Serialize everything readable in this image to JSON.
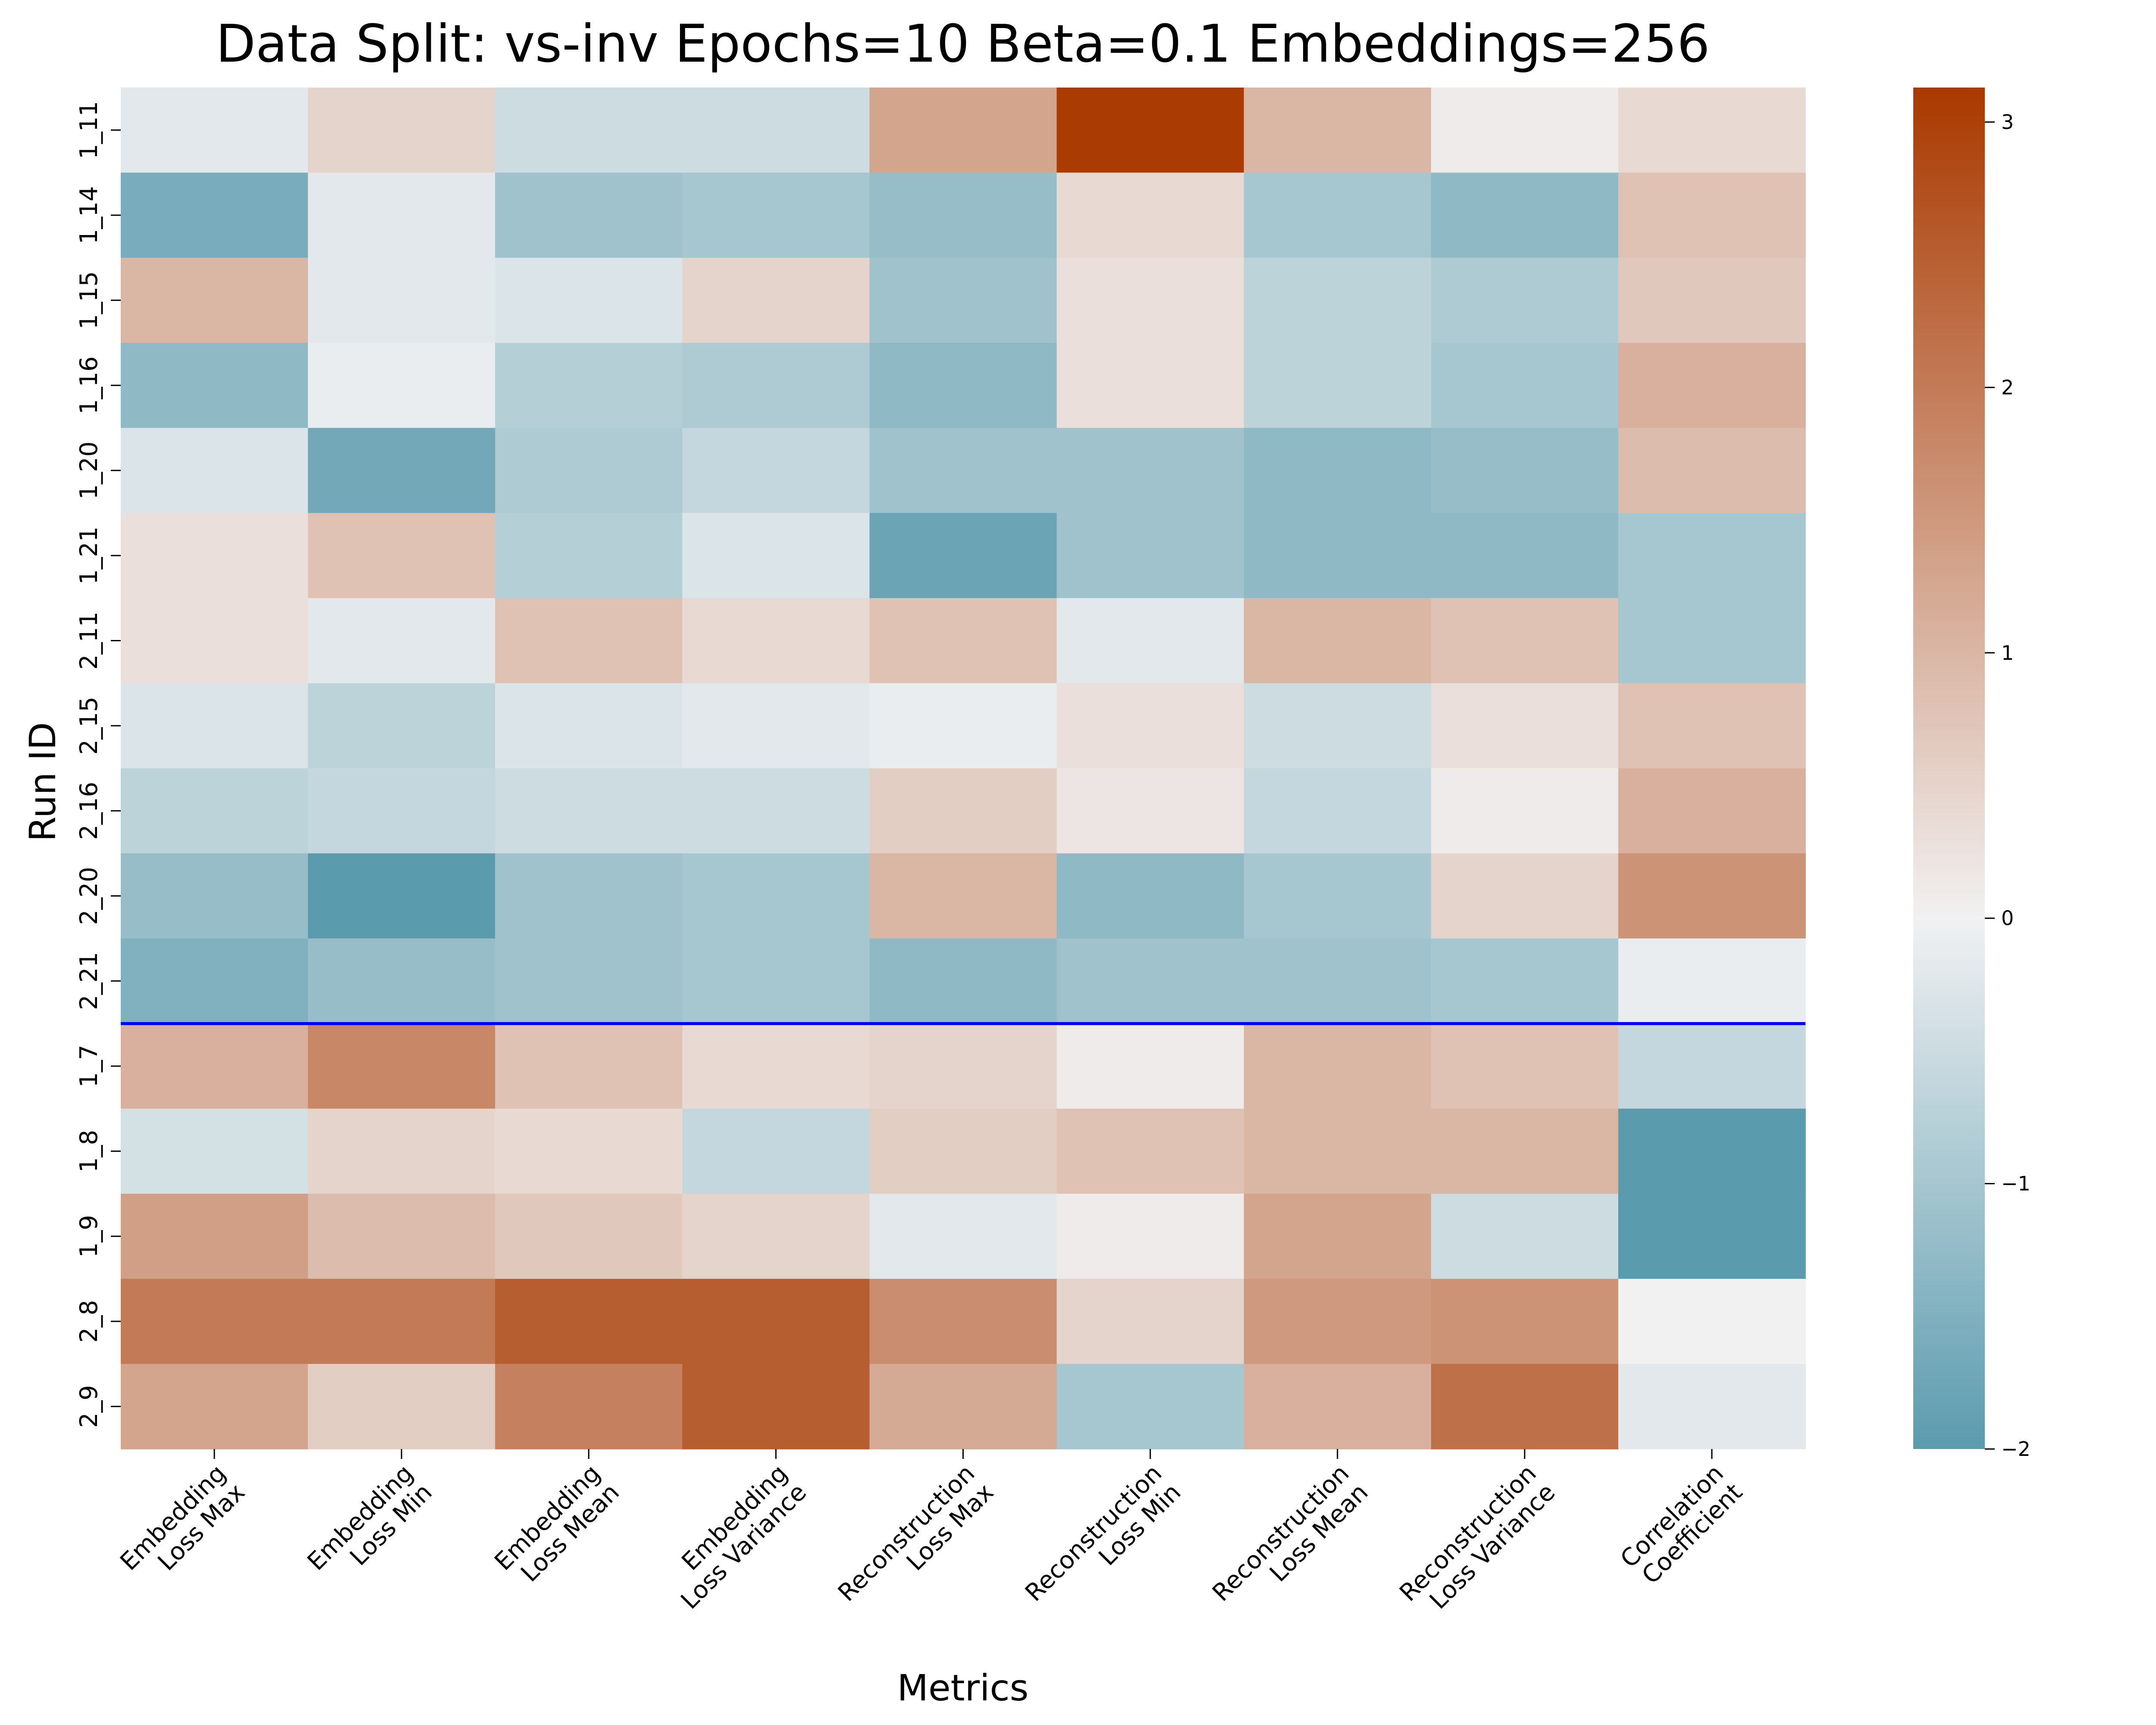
{
  "chart_data": {
    "type": "heatmap",
    "title": "Data Split: vs-inv Epochs=10 Beta=0.1 Embeddings=256",
    "xlabel": "Metrics",
    "ylabel": "Run ID",
    "x_categories": [
      [
        "Embedding",
        "Loss Max"
      ],
      [
        "Embedding",
        "Loss Min"
      ],
      [
        "Embedding",
        "Loss Mean"
      ],
      [
        "Embedding",
        "Loss Variance"
      ],
      [
        "Reconstruction",
        "Loss Max"
      ],
      [
        "Reconstruction",
        "Loss Min"
      ],
      [
        "Reconstruction",
        "Loss Mean"
      ],
      [
        "Reconstruction",
        "Loss Variance"
      ],
      [
        "Correlation",
        "Coefficient"
      ]
    ],
    "y_categories": [
      "1_11",
      "1_14",
      "1_15",
      "1_16",
      "1_20",
      "1_21",
      "2_11",
      "2_15",
      "2_16",
      "2_20",
      "2_21",
      "1_7",
      "1_8",
      "1_9",
      "2_8",
      "2_9"
    ],
    "values": [
      [
        -0.2,
        0.5,
        -0.5,
        -0.5,
        1.3,
        3.1,
        1.0,
        0.1,
        0.4
      ],
      [
        -1.6,
        -0.2,
        -1.1,
        -1.0,
        -1.2,
        0.4,
        -1.0,
        -1.3,
        0.8
      ],
      [
        1.0,
        -0.2,
        -0.3,
        0.5,
        -1.1,
        0.3,
        -0.7,
        -0.9,
        0.7
      ],
      [
        -1.3,
        -0.1,
        -0.8,
        -0.9,
        -1.3,
        0.3,
        -0.7,
        -1.0,
        1.1
      ],
      [
        -0.3,
        -1.7,
        -0.9,
        -0.6,
        -1.1,
        -1.1,
        -1.3,
        -1.2,
        0.9
      ],
      [
        0.3,
        0.8,
        -0.8,
        -0.3,
        -1.8,
        -1.1,
        -1.3,
        -1.3,
        -1.0
      ],
      [
        0.3,
        -0.2,
        0.8,
        0.4,
        0.8,
        -0.2,
        1.0,
        0.8,
        -1.0
      ],
      [
        -0.3,
        -0.7,
        -0.3,
        -0.2,
        -0.1,
        0.3,
        -0.5,
        0.3,
        0.8
      ],
      [
        -0.7,
        -0.6,
        -0.5,
        -0.5,
        0.6,
        0.2,
        -0.6,
        0.1,
        1.1
      ],
      [
        -1.2,
        -2.0,
        -1.1,
        -1.0,
        1.0,
        -1.3,
        -1.0,
        0.5,
        1.6
      ],
      [
        -1.5,
        -1.2,
        -1.1,
        -1.0,
        -1.3,
        -1.1,
        -1.1,
        -1.0,
        -0.1
      ],
      [
        1.1,
        1.8,
        0.8,
        0.4,
        0.5,
        0.1,
        1.0,
        0.8,
        -0.6
      ],
      [
        -0.4,
        0.5,
        0.4,
        -0.6,
        0.6,
        0.8,
        1.0,
        1.0,
        -2.0
      ],
      [
        1.4,
        0.9,
        0.7,
        0.5,
        -0.2,
        0.1,
        1.3,
        -0.5,
        -2.0
      ],
      [
        2.0,
        2.0,
        2.5,
        2.5,
        1.7,
        0.5,
        1.5,
        1.6,
        0.0
      ],
      [
        1.3,
        0.6,
        1.9,
        2.5,
        1.2,
        -1.0,
        1.1,
        2.2,
        -0.2
      ]
    ],
    "vmin": -2,
    "vmax": 3.13,
    "colormap": {
      "low": "#5b9bae",
      "mid": "#f1f1f2",
      "high": "#a93900"
    },
    "colorbar_ticks": [
      -2,
      -1,
      0,
      1,
      2,
      3
    ],
    "separator_after_row": 11,
    "separator_color": "#0000ff",
    "grid": false
  }
}
